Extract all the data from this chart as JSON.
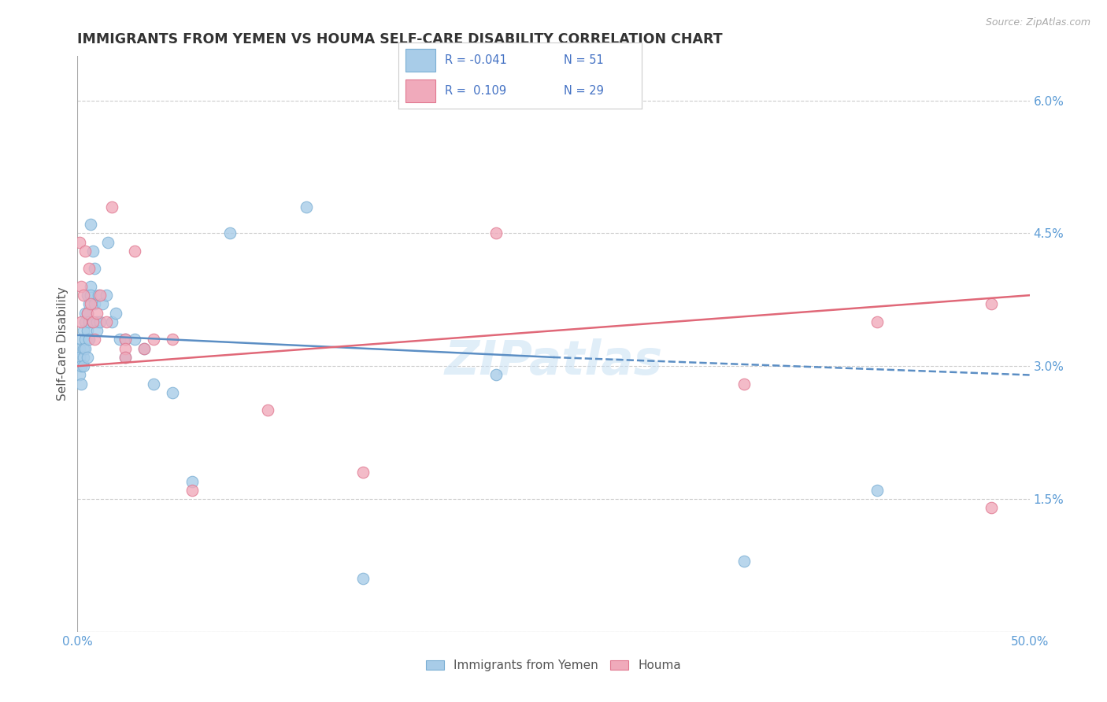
{
  "title": "IMMIGRANTS FROM YEMEN VS HOUMA SELF-CARE DISABILITY CORRELATION CHART",
  "source_text": "Source: ZipAtlas.com",
  "ylabel": "Self-Care Disability",
  "xlim": [
    0,
    0.5
  ],
  "ylim": [
    0,
    0.065
  ],
  "legend_label1": "Immigrants from Yemen",
  "legend_label2": "Houma",
  "color_blue": "#A8CCE8",
  "color_pink": "#F0AABB",
  "color_blue_edge": "#7BAFD4",
  "color_pink_edge": "#E07890",
  "color_blue_line": "#5B8EC4",
  "color_pink_line": "#E06878",
  "color_blue_text": "#4472C4",
  "background_color": "#FFFFFF",
  "grid_color": "#CCCCCC",
  "watermark_text": "ZIPatlas",
  "blue_scatter_x": [
    0.001,
    0.001,
    0.001,
    0.002,
    0.002,
    0.002,
    0.003,
    0.003,
    0.003,
    0.003,
    0.004,
    0.004,
    0.004,
    0.004,
    0.005,
    0.005,
    0.005,
    0.005,
    0.006,
    0.006,
    0.006,
    0.007,
    0.007,
    0.007,
    0.008,
    0.008,
    0.009,
    0.009,
    0.01,
    0.01,
    0.011,
    0.012,
    0.013,
    0.015,
    0.016,
    0.018,
    0.02,
    0.022,
    0.025,
    0.025,
    0.03,
    0.035,
    0.04,
    0.05,
    0.06,
    0.08,
    0.12,
    0.15,
    0.22,
    0.35,
    0.42
  ],
  "blue_scatter_y": [
    0.032,
    0.031,
    0.029,
    0.033,
    0.03,
    0.028,
    0.034,
    0.032,
    0.031,
    0.03,
    0.036,
    0.035,
    0.033,
    0.032,
    0.038,
    0.036,
    0.034,
    0.031,
    0.037,
    0.035,
    0.033,
    0.046,
    0.039,
    0.038,
    0.043,
    0.035,
    0.041,
    0.037,
    0.035,
    0.034,
    0.038,
    0.035,
    0.037,
    0.038,
    0.044,
    0.035,
    0.036,
    0.033,
    0.033,
    0.031,
    0.033,
    0.032,
    0.028,
    0.027,
    0.017,
    0.045,
    0.048,
    0.006,
    0.029,
    0.008,
    0.016
  ],
  "pink_scatter_x": [
    0.001,
    0.002,
    0.002,
    0.003,
    0.004,
    0.005,
    0.006,
    0.007,
    0.008,
    0.009,
    0.01,
    0.012,
    0.015,
    0.018,
    0.025,
    0.025,
    0.025,
    0.03,
    0.035,
    0.04,
    0.05,
    0.06,
    0.1,
    0.15,
    0.22,
    0.35,
    0.42,
    0.48,
    0.48
  ],
  "pink_scatter_y": [
    0.044,
    0.039,
    0.035,
    0.038,
    0.043,
    0.036,
    0.041,
    0.037,
    0.035,
    0.033,
    0.036,
    0.038,
    0.035,
    0.048,
    0.033,
    0.032,
    0.031,
    0.043,
    0.032,
    0.033,
    0.033,
    0.016,
    0.025,
    0.018,
    0.045,
    0.028,
    0.035,
    0.037,
    0.014
  ],
  "blue_line_x": [
    0.0,
    0.25,
    0.5
  ],
  "blue_line_y": [
    0.0335,
    0.031,
    0.029
  ],
  "pink_line_x": [
    0.0,
    0.5
  ],
  "pink_line_y": [
    0.03,
    0.038
  ]
}
